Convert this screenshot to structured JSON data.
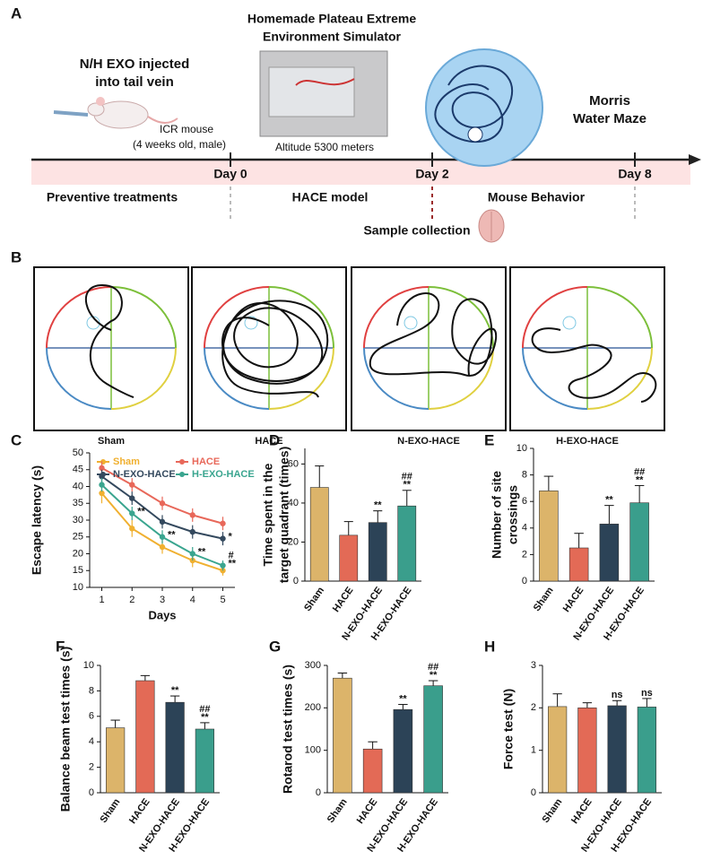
{
  "panel_labels": [
    "A",
    "B",
    "C",
    "D",
    "E",
    "F",
    "G",
    "H"
  ],
  "timeline": {
    "simulator_title": [
      "Homemade Plateau Extreme",
      "Environment Simulator"
    ],
    "injection": [
      "N/H EXO injected",
      "into tail vein"
    ],
    "mouse": "ICR mouse",
    "mouse_detail": "(4 weeks old, male)",
    "altitude": "Altitude 5300 meters",
    "maze": [
      "Morris",
      "Water Maze"
    ],
    "days": [
      "Day 0",
      "Day 2",
      "Day 8"
    ],
    "phases": [
      "Preventive treatments",
      "HACE model",
      "Mouse Behavior"
    ],
    "sample": "Sample collection"
  },
  "trajectories": {
    "labels": [
      "Sham",
      "HACE",
      "N-EXO-HACE",
      "H-EXO-HACE"
    ]
  },
  "chart_data": [
    {
      "type": "line",
      "xlabel": "Days",
      "ylabel": "Escape latency (s)",
      "x": [
        1,
        2,
        3,
        4,
        5
      ],
      "xlim": [
        0.6,
        5.4
      ],
      "xticks": [
        1,
        2,
        3,
        4,
        5
      ],
      "ylim": [
        10,
        50
      ],
      "yticks": [
        10,
        15,
        20,
        25,
        30,
        35,
        40,
        45,
        50
      ],
      "series": [
        {
          "name": "Sham",
          "color": "#f0b030",
          "values": [
            38,
            27.5,
            22,
            18,
            15
          ],
          "errors": [
            3,
            2.5,
            2,
            2,
            1.5
          ],
          "annotations": [
            null,
            null,
            null,
            null,
            null
          ]
        },
        {
          "name": "HACE",
          "color": "#e8685a",
          "values": [
            45.5,
            40.5,
            35,
            31.5,
            29
          ],
          "errors": [
            2,
            2,
            2,
            2,
            2
          ],
          "annotations": [
            null,
            null,
            null,
            null,
            null
          ]
        },
        {
          "name": "N-EXO-HACE",
          "color": "#34495e",
          "values": [
            43,
            36.5,
            29.5,
            26.5,
            24.5
          ],
          "errors": [
            2,
            2,
            2,
            2,
            2
          ],
          "annotations": [
            null,
            null,
            null,
            null,
            [
              "*"
            ]
          ]
        },
        {
          "name": "H-EXO-HACE",
          "color": "#3aa58f",
          "values": [
            40.5,
            32,
            25,
            20,
            16.5
          ],
          "errors": [
            2,
            2,
            2,
            2,
            1.5
          ],
          "annotations": [
            null,
            [
              "**"
            ],
            [
              "**"
            ],
            [
              "**"
            ],
            [
              "#",
              "**"
            ]
          ]
        }
      ]
    },
    {
      "type": "bar",
      "ylabel": [
        "Time spent in the",
        "target quadrant (times)"
      ],
      "categories": [
        "Sham",
        "HACE",
        "N-EXO-HACE",
        "H-EXO-HACE"
      ],
      "colors": [
        "#dcb46a",
        "#e36a56",
        "#2c4357",
        "#3a9e8c"
      ],
      "values": [
        48,
        23.5,
        30,
        38.5
      ],
      "errors": [
        11,
        7,
        6,
        8
      ],
      "annotations": [
        null,
        null,
        [
          "**"
        ],
        [
          "##",
          "**"
        ]
      ],
      "ylim": [
        0,
        68
      ],
      "yticks": [
        0,
        20,
        40,
        60
      ]
    },
    {
      "type": "bar",
      "ylabel": [
        "Number of site",
        "crossings"
      ],
      "categories": [
        "Sham",
        "HACE",
        "N-EXO-HACE",
        "H-EXO-HACE"
      ],
      "colors": [
        "#dcb46a",
        "#e36a56",
        "#2c4357",
        "#3a9e8c"
      ],
      "values": [
        6.8,
        2.5,
        4.3,
        5.9
      ],
      "errors": [
        1.1,
        1.1,
        1.4,
        1.3
      ],
      "annotations": [
        null,
        null,
        [
          "**"
        ],
        [
          "##",
          "**"
        ]
      ],
      "ylim": [
        0,
        10
      ],
      "yticks": [
        0,
        2,
        4,
        6,
        8,
        10
      ]
    },
    {
      "type": "bar",
      "ylabel": "Balance beam test times (s)",
      "categories": [
        "Sham",
        "HACE",
        "N-EXO-HACE",
        "H-EXO-HACE"
      ],
      "colors": [
        "#dcb46a",
        "#e36a56",
        "#2c4357",
        "#3a9e8c"
      ],
      "values": [
        5.1,
        8.8,
        7.1,
        5.0
      ],
      "errors": [
        0.6,
        0.4,
        0.5,
        0.5
      ],
      "annotations": [
        null,
        null,
        [
          "**"
        ],
        [
          "##",
          "**"
        ]
      ],
      "ylim": [
        0,
        10
      ],
      "yticks": [
        0,
        2,
        4,
        6,
        8,
        10
      ]
    },
    {
      "type": "bar",
      "ylabel": "Rotarod test times (s)",
      "categories": [
        "Sham",
        "HACE",
        "N-EXO-HACE",
        "H-EXO-HACE"
      ],
      "colors": [
        "#dcb46a",
        "#e36a56",
        "#2c4357",
        "#3a9e8c"
      ],
      "values": [
        270,
        103,
        196,
        252
      ],
      "errors": [
        12,
        17,
        12,
        12
      ],
      "annotations": [
        null,
        null,
        [
          "**"
        ],
        [
          "##",
          "**"
        ]
      ],
      "ylim": [
        0,
        300
      ],
      "yticks": [
        0,
        100,
        200,
        300
      ]
    },
    {
      "type": "bar",
      "ylabel": "Force test (N)",
      "categories": [
        "Sham",
        "HACE",
        "N-EXO-HACE",
        "H-EXO-HACE"
      ],
      "colors": [
        "#dcb46a",
        "#e36a56",
        "#2c4357",
        "#3a9e8c"
      ],
      "values": [
        2.03,
        2.0,
        2.05,
        2.02
      ],
      "errors": [
        0.3,
        0.12,
        0.12,
        0.2
      ],
      "annotations": [
        null,
        null,
        [
          "ns"
        ],
        [
          "ns"
        ]
      ],
      "ylim": [
        0,
        3
      ],
      "yticks": [
        0,
        1,
        2,
        3
      ]
    }
  ]
}
